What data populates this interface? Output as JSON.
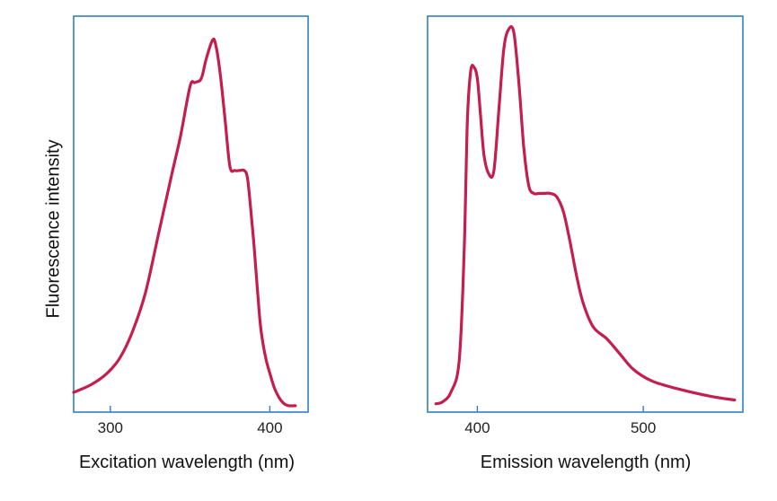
{
  "colors": {
    "frame": "#2f7fc8",
    "curve": "#c41e4e",
    "text": "#111111"
  },
  "shared_ylabel": "Fluorescence intensity",
  "chart_data": [
    {
      "type": "line",
      "title": "",
      "xlabel": "Excitation wavelength (nm)",
      "ylabel": "Fluorescence intensity",
      "xlim": [
        277,
        424
      ],
      "ylim": [
        0,
        100
      ],
      "xticks": [
        300,
        400
      ],
      "xtick_labels": [
        "300",
        "400"
      ],
      "yticks": [],
      "grid": false,
      "series": [
        {
          "name": "",
          "x": [
            277,
            288,
            298,
            306,
            314,
            322,
            330,
            338,
            344,
            350,
            353,
            357,
            360,
            364,
            366,
            369,
            372,
            375,
            378,
            381,
            384,
            386,
            388,
            390,
            392,
            394,
            396,
            398,
            400,
            403,
            406,
            409,
            412,
            416
          ],
          "y": [
            4,
            6,
            9,
            13,
            20,
            30,
            45,
            60,
            71,
            84,
            85,
            86,
            91,
            96,
            95,
            87,
            75,
            63,
            62,
            62,
            62,
            60,
            52,
            43,
            32,
            22,
            16,
            12,
            9,
            5,
            2.5,
            1,
            0.5,
            0.5
          ]
        }
      ]
    },
    {
      "type": "line",
      "title": "",
      "xlabel": "Emission wavelength (nm)",
      "ylabel": "",
      "xlim": [
        370,
        560
      ],
      "ylim": [
        0,
        100
      ],
      "xticks": [
        400,
        500
      ],
      "xtick_labels": [
        "400",
        "500"
      ],
      "yticks": [],
      "grid": false,
      "series": [
        {
          "name": "",
          "x": [
            375,
            379,
            384,
            389,
            392,
            394,
            396,
            398,
            400,
            402,
            404,
            407,
            410,
            413,
            416,
            419,
            422,
            425,
            428,
            431,
            434,
            437,
            440,
            444,
            448,
            452,
            456,
            460,
            464,
            470,
            478,
            486,
            494,
            505,
            520,
            540,
            555
          ],
          "y": [
            1,
            1.5,
            4,
            12,
            40,
            75,
            88,
            89,
            86,
            76,
            66,
            61,
            62,
            78,
            94,
            99,
            98,
            85,
            68,
            58,
            56,
            56,
            56,
            56,
            55,
            51,
            43,
            34,
            27,
            21,
            18,
            14,
            10,
            7,
            5,
            3,
            2
          ]
        }
      ]
    }
  ]
}
